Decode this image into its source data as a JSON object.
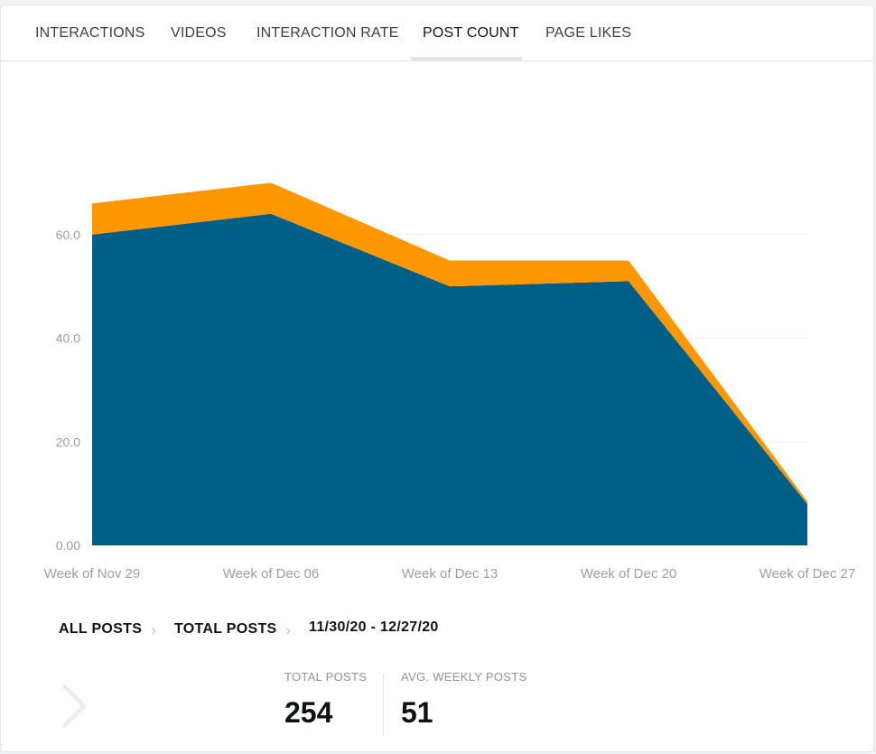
{
  "tabs": [
    {
      "label": "INTERACTIONS",
      "active": false
    },
    {
      "label": "VIDEOS",
      "active": false
    },
    {
      "label": "INTERACTION RATE",
      "active": false
    },
    {
      "label": "POST COUNT",
      "active": true
    },
    {
      "label": "PAGE LIKES",
      "active": false
    }
  ],
  "chart_data": {
    "type": "area",
    "stacked": true,
    "categories": [
      "Week of Nov 29",
      "Week of Dec 06",
      "Week of Dec 13",
      "Week of Dec 20",
      "Week of Dec 27"
    ],
    "series": [
      {
        "color": "#005f86",
        "values": [
          60,
          64,
          50,
          51,
          8
        ]
      },
      {
        "color": "#ff9800",
        "values": [
          6,
          6,
          5,
          4,
          0.5
        ]
      }
    ],
    "yticks": [
      "0.00",
      "20.0",
      "40.0",
      "60.0"
    ],
    "ylim": [
      0,
      80
    ],
    "grid": true
  },
  "breadcrumb": {
    "level1": "ALL POSTS",
    "level2": "TOTAL POSTS",
    "range": "11/30/20 - 12/27/20"
  },
  "stats": {
    "total_label": "TOTAL POSTS",
    "total_value": "254",
    "avg_label": "AVG. WEEKLY POSTS",
    "avg_value": "51"
  }
}
